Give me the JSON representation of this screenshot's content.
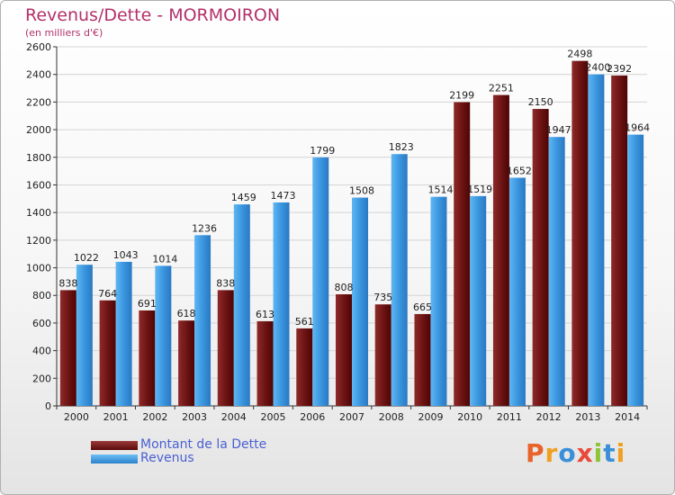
{
  "chart_data": {
    "type": "bar",
    "title": "Revenus/Dette - MORMOIRON",
    "subtitle": "(en milliers d'€)",
    "xlabel": "",
    "ylabel": "",
    "categories": [
      "2000",
      "2001",
      "2002",
      "2003",
      "2004",
      "2005",
      "2006",
      "2007",
      "2008",
      "2009",
      "2010",
      "2011",
      "2012",
      "2013",
      "2014"
    ],
    "series": [
      {
        "name": "Montant de la Dette",
        "color": "#7a1e1e",
        "values": [
          838,
          764,
          691,
          618,
          838,
          613,
          561,
          808,
          735,
          665,
          2199,
          2251,
          2150,
          2498,
          2392
        ]
      },
      {
        "name": "Revenus",
        "color": "#4aa3e6",
        "values": [
          1022,
          1043,
          1014,
          1236,
          1459,
          1473,
          1799,
          1508,
          1823,
          1514,
          1519,
          1652,
          1947,
          2400,
          1964
        ]
      }
    ],
    "ylim": [
      0,
      2600
    ],
    "yticks": [
      0,
      200,
      400,
      600,
      800,
      1000,
      1200,
      1400,
      1600,
      1800,
      2000,
      2200,
      2400,
      2600
    ],
    "grid": true,
    "legend_position": "bottom-left"
  },
  "logo": {
    "text": "Proxiti",
    "colors": [
      "#e8622a",
      "#f0a020",
      "#3a8fd8",
      "#e84a3a",
      "#8cc43a",
      "#3a8fd8",
      "#f0a020"
    ]
  }
}
